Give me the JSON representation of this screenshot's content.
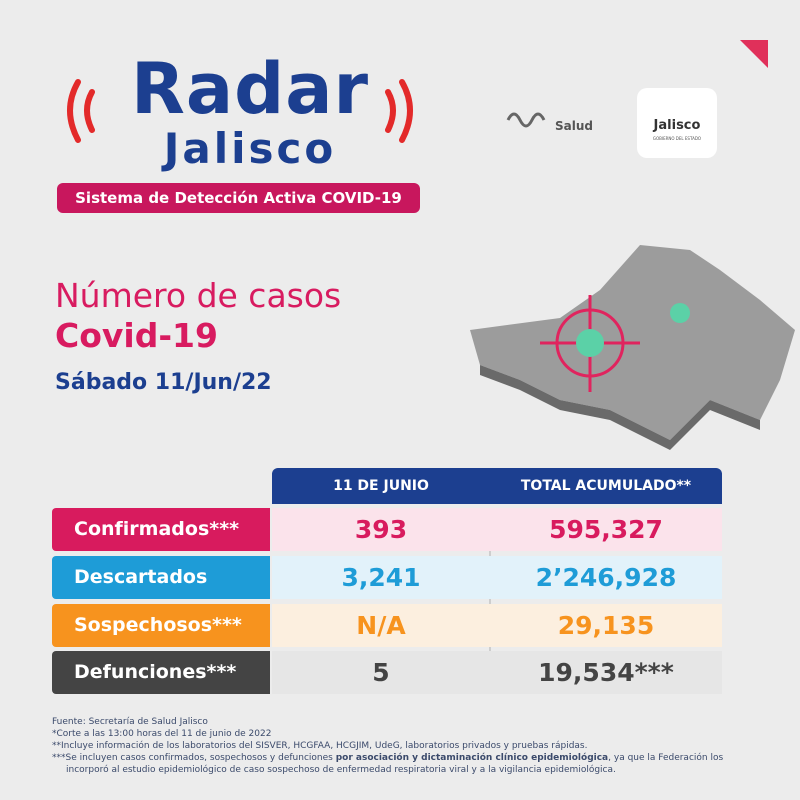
{
  "logo": {
    "title": "Radar",
    "subtitle": "Jalisco",
    "tagline": "Sistema de Detección Activa COVID-19"
  },
  "partners": {
    "salud": "Salud",
    "state": "Jalisco",
    "state_sub": "GOBIERNO DEL ESTADO"
  },
  "heading": {
    "line1": "Número de casos",
    "line2": "Covid-19",
    "date": "Sábado 11/Jun/22"
  },
  "table": {
    "columns": [
      "11 DE JUNIO",
      "TOTAL ACUMULADO**"
    ],
    "rows": [
      {
        "label": "Confirmados***",
        "day": "393",
        "total": "595,327"
      },
      {
        "label": "Descartados",
        "day": "3,241",
        "total": "2’246,928"
      },
      {
        "label": "Sospechosos***",
        "day": "N/A",
        "total": "29,135"
      },
      {
        "label": "Defunciones***",
        "day": "5",
        "total": "19,534***"
      }
    ]
  },
  "notes": [
    "Fuente: Secretaría de Salud Jalisco",
    "*Corte a las 13:00 horas del 11 de junio de 2022",
    "**Incluye información de los laboratorios del SISVER, HCGFAA, HCGJIM, UdeG, laboratorios privados y pruebas rápidas.",
    [
      "***Se incluyen casos confirmados, sospechosos y defunciones ",
      "por asociación y dictaminación clínico epidemiológica",
      ", ya que la Federación los incorporó al estudio epidemiológico de caso sospechoso de enfermedad respiratoria viral y a la vigilancia epidemiológica."
    ]
  ]
}
